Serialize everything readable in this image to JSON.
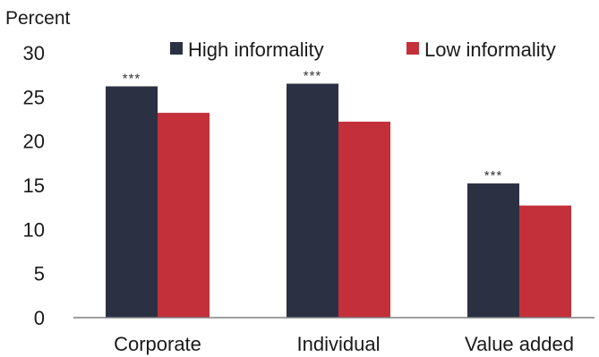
{
  "chart_data": {
    "type": "bar",
    "ylabel": "Percent",
    "ylim": [
      0,
      30
    ],
    "yticks": [
      "0",
      "5",
      "10",
      "15",
      "20",
      "25",
      "30"
    ],
    "categories": [
      "Corporate",
      "Individual",
      "Value added"
    ],
    "series": [
      {
        "name": "High informality",
        "color": "#2b3143",
        "values": [
          26.2,
          26.5,
          15.2
        ],
        "annotations": [
          "***",
          "***",
          "***"
        ]
      },
      {
        "name": "Low informality",
        "color": "#c3303a",
        "values": [
          23.2,
          22.2,
          12.7
        ]
      }
    ],
    "legend_position": "top",
    "grid": false
  }
}
